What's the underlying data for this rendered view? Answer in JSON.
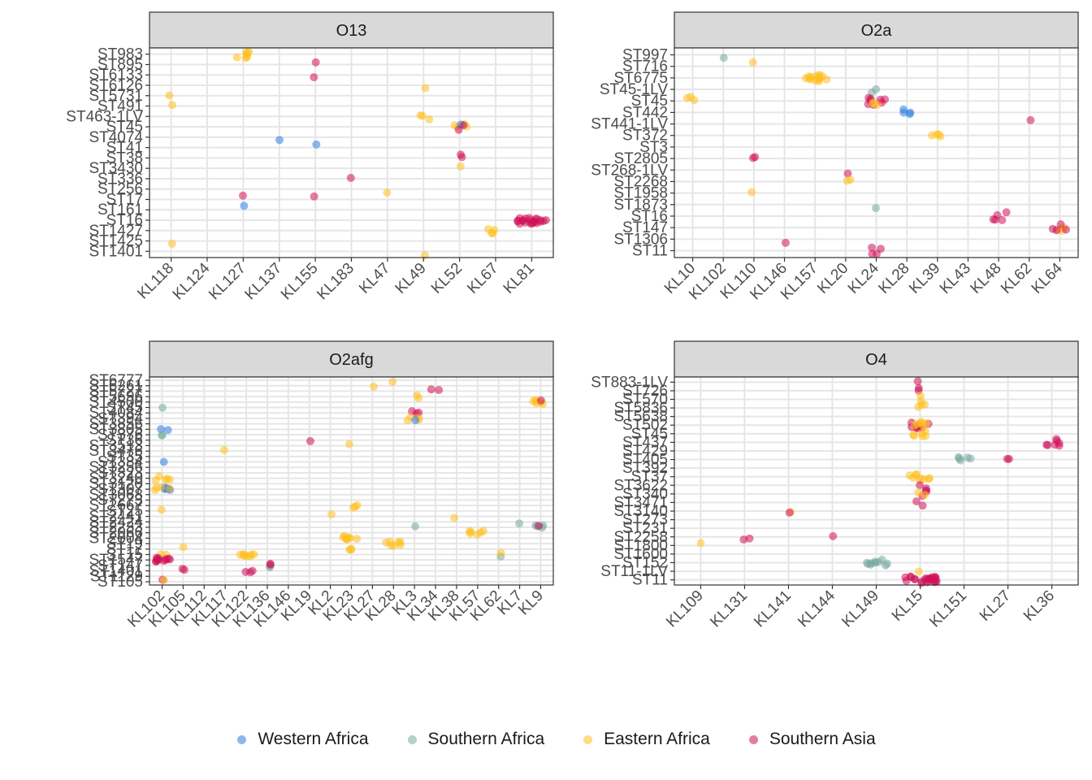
{
  "colors": {
    "Western Africa": "#2f7de1",
    "Southern Africa": "#77a9a0",
    "Eastern Africa": "#ffbf1f",
    "Southern Asia": "#d0105a"
  },
  "legend": {
    "items": [
      {
        "label": "Western Africa",
        "color": "#2f7de1"
      },
      {
        "label": "Southern Africa",
        "color": "#77a9a0"
      },
      {
        "label": "Eastern Africa",
        "color": "#ffbf1f"
      },
      {
        "label": "Southern Asia",
        "color": "#d0105a"
      }
    ]
  },
  "chart_data": [
    {
      "type": "scatter",
      "title": "O13",
      "x_categories": [
        "KL118",
        "KL124",
        "KL127",
        "KL137",
        "KL155",
        "KL183",
        "KL47",
        "KL49",
        "KL52",
        "KL67",
        "KL81"
      ],
      "y_categories": [
        "ST1401",
        "ST1425",
        "ST1427",
        "ST16",
        "ST161",
        "ST17",
        "ST256",
        "ST336",
        "ST3430",
        "ST38",
        "ST41",
        "ST4074",
        "ST45",
        "ST463-1LV",
        "ST491",
        "ST5731",
        "ST6126",
        "ST6133",
        "ST895",
        "ST983"
      ],
      "points": [
        {
          "x": "KL127",
          "y": "ST983",
          "region": "Eastern Africa",
          "n": 7
        },
        {
          "x": "KL155",
          "y": "ST895",
          "region": "Southern Asia",
          "n": 1
        },
        {
          "x": "KL155",
          "y": "ST6133",
          "region": "Southern Asia",
          "n": 1
        },
        {
          "x": "KL49",
          "y": "ST6126",
          "region": "Eastern Africa",
          "n": 1
        },
        {
          "x": "KL118",
          "y": "ST5731",
          "region": "Eastern Africa",
          "n": 1
        },
        {
          "x": "KL118",
          "y": "ST491",
          "region": "Eastern Africa",
          "n": 1
        },
        {
          "x": "KL49",
          "y": "ST463-1LV",
          "region": "Eastern Africa",
          "n": 3
        },
        {
          "x": "KL52",
          "y": "ST45",
          "region": "Eastern Africa",
          "n": 4
        },
        {
          "x": "KL52",
          "y": "ST45",
          "region": "Western Africa",
          "n": 1
        },
        {
          "x": "KL52",
          "y": "ST45",
          "region": "Southern Asia",
          "n": 2
        },
        {
          "x": "KL137",
          "y": "ST4074",
          "region": "Western Africa",
          "n": 1
        },
        {
          "x": "KL155",
          "y": "ST41",
          "region": "Western Africa",
          "n": 1
        },
        {
          "x": "KL52",
          "y": "ST38",
          "region": "Southern Asia",
          "n": 2
        },
        {
          "x": "KL52",
          "y": "ST3430",
          "region": "Eastern Africa",
          "n": 1
        },
        {
          "x": "KL183",
          "y": "ST336",
          "region": "Southern Asia",
          "n": 1
        },
        {
          "x": "KL47",
          "y": "ST256",
          "region": "Eastern Africa",
          "n": 1
        },
        {
          "x": "KL127",
          "y": "ST17",
          "region": "Southern Asia",
          "n": 1
        },
        {
          "x": "KL155",
          "y": "ST17",
          "region": "Southern Asia",
          "n": 1
        },
        {
          "x": "KL127",
          "y": "ST161",
          "region": "Western Africa",
          "n": 1
        },
        {
          "x": "KL81",
          "y": "ST16",
          "region": "Southern Asia",
          "n": 22
        },
        {
          "x": "KL67",
          "y": "ST1427",
          "region": "Eastern Africa",
          "n": 4
        },
        {
          "x": "KL118",
          "y": "ST1425",
          "region": "Eastern Africa",
          "n": 1
        },
        {
          "x": "KL49",
          "y": "ST1401",
          "region": "Eastern Africa",
          "n": 1
        }
      ]
    },
    {
      "type": "scatter",
      "title": "O2a",
      "x_categories": [
        "KL10",
        "KL102",
        "KL110",
        "KL146",
        "KL157",
        "KL20",
        "KL24",
        "KL28",
        "KL39",
        "KL43",
        "KL48",
        "KL62",
        "KL64"
      ],
      "y_categories": [
        "ST11",
        "ST1306",
        "ST147",
        "ST16",
        "ST1873",
        "ST1958",
        "ST2268",
        "ST268-1LV",
        "ST2805",
        "ST3",
        "ST372",
        "ST441-1LV",
        "ST442",
        "ST45",
        "ST45-1LV",
        "ST6775",
        "ST716",
        "ST997"
      ],
      "points": [
        {
          "x": "KL102",
          "y": "ST997",
          "region": "Southern Africa",
          "n": 1
        },
        {
          "x": "KL110",
          "y": "ST716",
          "region": "Eastern Africa",
          "n": 1
        },
        {
          "x": "KL157",
          "y": "ST6775",
          "region": "Eastern Africa",
          "n": 14
        },
        {
          "x": "KL24",
          "y": "ST45-1LV",
          "region": "Southern Africa",
          "n": 2
        },
        {
          "x": "KL10",
          "y": "ST45",
          "region": "Eastern Africa",
          "n": 3
        },
        {
          "x": "KL24",
          "y": "ST45",
          "region": "Southern Asia",
          "n": 8
        },
        {
          "x": "KL24",
          "y": "ST45",
          "region": "Eastern Africa",
          "n": 3
        },
        {
          "x": "KL28",
          "y": "ST442",
          "region": "Western Africa",
          "n": 4
        },
        {
          "x": "KL62",
          "y": "ST441-1LV",
          "region": "Southern Asia",
          "n": 1
        },
        {
          "x": "KL39",
          "y": "ST372",
          "region": "Eastern Africa",
          "n": 4
        },
        {
          "x": "KL110",
          "y": "ST2805",
          "region": "Southern Asia",
          "n": 2
        },
        {
          "x": "KL20",
          "y": "ST268-1LV",
          "region": "Southern Asia",
          "n": 1
        },
        {
          "x": "KL20",
          "y": "ST2268",
          "region": "Eastern Africa",
          "n": 2
        },
        {
          "x": "KL110",
          "y": "ST1958",
          "region": "Eastern Africa",
          "n": 1
        },
        {
          "x": "KL24",
          "y": "ST1873",
          "region": "Southern Africa",
          "n": 1
        },
        {
          "x": "KL48",
          "y": "ST16",
          "region": "Southern Asia",
          "n": 5
        },
        {
          "x": "KL64",
          "y": "ST147",
          "region": "Eastern Africa",
          "n": 4
        },
        {
          "x": "KL64",
          "y": "ST147",
          "region": "Southern Asia",
          "n": 4
        },
        {
          "x": "KL146",
          "y": "ST1306",
          "region": "Southern Asia",
          "n": 1
        },
        {
          "x": "KL24",
          "y": "ST11",
          "region": "Southern Asia",
          "n": 4
        }
      ]
    },
    {
      "type": "scatter",
      "title": "O2afg",
      "x_categories": [
        "KL102",
        "KL105",
        "KL112",
        "KL117",
        "KL122",
        "KL136",
        "KL146",
        "KL19",
        "KL2",
        "KL23",
        "KL27",
        "KL28",
        "KL3",
        "KL34",
        "KL38",
        "KL57",
        "KL62",
        "KL7",
        "KL9"
      ],
      "y_categories": [
        "ST105",
        "ST1129",
        "ST1401",
        "ST147",
        "ST1547",
        "ST15",
        "ST17",
        "ST19",
        "ST2004",
        "ST2066",
        "ST2233",
        "ST2424",
        "ST2441",
        "ST25",
        "ST2667",
        "ST273",
        "ST3068",
        "ST307",
        "ST3120",
        "ST3240",
        "ST323",
        "ST3256",
        "ST334",
        "ST35",
        "ST3476",
        "ST3513",
        "ST36",
        "ST376",
        "ST3805",
        "ST3856",
        "ST394",
        "ST4084",
        "ST45",
        "ST4500",
        "ST5696",
        "ST5727",
        "ST6261",
        "ST6777"
      ],
      "points": [
        {
          "x": "KL28",
          "y": "ST6777",
          "region": "Eastern Africa",
          "n": 1
        },
        {
          "x": "KL27",
          "y": "ST6261",
          "region": "Eastern Africa",
          "n": 1
        },
        {
          "x": "KL3",
          "y": "ST5696",
          "region": "Eastern Africa",
          "n": 2
        },
        {
          "x": "KL34",
          "y": "ST5727",
          "region": "Southern Asia",
          "n": 2
        },
        {
          "x": "KL9",
          "y": "ST4500",
          "region": "Eastern Africa",
          "n": 7
        },
        {
          "x": "KL9",
          "y": "ST4500",
          "region": "Southern Asia",
          "n": 1
        },
        {
          "x": "KL3",
          "y": "ST4084",
          "region": "Southern Asia",
          "n": 3
        },
        {
          "x": "KL102",
          "y": "ST45",
          "region": "Southern Africa",
          "n": 1
        },
        {
          "x": "KL3",
          "y": "ST394",
          "region": "Eastern Africa",
          "n": 4
        },
        {
          "x": "KL3",
          "y": "ST394",
          "region": "Western Africa",
          "n": 1
        },
        {
          "x": "KL102",
          "y": "ST3805",
          "region": "Western Africa",
          "n": 2
        },
        {
          "x": "KL102",
          "y": "ST376",
          "region": "Southern Africa",
          "n": 2
        },
        {
          "x": "KL19",
          "y": "ST36",
          "region": "Southern Asia",
          "n": 1
        },
        {
          "x": "KL117",
          "y": "ST3476",
          "region": "Eastern Africa",
          "n": 1
        },
        {
          "x": "KL23",
          "y": "ST3513",
          "region": "Eastern Africa",
          "n": 1
        },
        {
          "x": "KL102",
          "y": "ST334",
          "region": "Western Africa",
          "n": 1
        },
        {
          "x": "KL102",
          "y": "ST3240",
          "region": "Eastern Africa",
          "n": 5
        },
        {
          "x": "KL102",
          "y": "ST307",
          "region": "Western Africa",
          "n": 5
        },
        {
          "x": "KL102",
          "y": "ST307",
          "region": "Eastern Africa",
          "n": 4
        },
        {
          "x": "KL23",
          "y": "ST2667",
          "region": "Eastern Africa",
          "n": 3
        },
        {
          "x": "KL102",
          "y": "ST25",
          "region": "Eastern Africa",
          "n": 1
        },
        {
          "x": "KL2",
          "y": "ST2441",
          "region": "Eastern Africa",
          "n": 1
        },
        {
          "x": "KL38",
          "y": "ST2441",
          "region": "Eastern Africa",
          "n": 1
        },
        {
          "x": "KL7",
          "y": "ST2424",
          "region": "Southern Africa",
          "n": 1
        },
        {
          "x": "KL3",
          "y": "ST2233",
          "region": "Southern Africa",
          "n": 1
        },
        {
          "x": "KL9",
          "y": "ST2233",
          "region": "Southern Africa",
          "n": 4
        },
        {
          "x": "KL9",
          "y": "ST2233",
          "region": "Southern Asia",
          "n": 1
        },
        {
          "x": "KL57",
          "y": "ST2066",
          "region": "Eastern Africa",
          "n": 6
        },
        {
          "x": "KL23",
          "y": "ST2004",
          "region": "Eastern Africa",
          "n": 8
        },
        {
          "x": "KL28",
          "y": "ST19",
          "region": "Eastern Africa",
          "n": 7
        },
        {
          "x": "KL23",
          "y": "ST17",
          "region": "Eastern Africa",
          "n": 3
        },
        {
          "x": "KL105",
          "y": "ST17",
          "region": "Eastern Africa",
          "n": 1
        },
        {
          "x": "KL122",
          "y": "ST15",
          "region": "Eastern Africa",
          "n": 8
        },
        {
          "x": "KL102",
          "y": "ST15",
          "region": "Eastern Africa",
          "n": 2
        },
        {
          "x": "KL62",
          "y": "ST15",
          "region": "Southern Africa",
          "n": 1
        },
        {
          "x": "KL62",
          "y": "ST15",
          "region": "Eastern Africa",
          "n": 1
        },
        {
          "x": "KL102",
          "y": "ST1547",
          "region": "Southern Asia",
          "n": 12
        },
        {
          "x": "KL136",
          "y": "ST147",
          "region": "Southern Africa",
          "n": 2
        },
        {
          "x": "KL136",
          "y": "ST147",
          "region": "Southern Asia",
          "n": 2
        },
        {
          "x": "KL105",
          "y": "ST1401",
          "region": "Southern Asia",
          "n": 2
        },
        {
          "x": "KL122",
          "y": "ST1401",
          "region": "Southern Asia",
          "n": 3
        },
        {
          "x": "KL102",
          "y": "ST105",
          "region": "Southern Asia",
          "n": 1
        },
        {
          "x": "KL102",
          "y": "ST105",
          "region": "Eastern Africa",
          "n": 1
        }
      ]
    },
    {
      "type": "scatter",
      "title": "O4",
      "x_categories": [
        "KL109",
        "KL131",
        "KL141",
        "KL144",
        "KL149",
        "KL15",
        "KL151",
        "KL27",
        "KL36"
      ],
      "y_categories": [
        "ST11",
        "ST11-1LV",
        "ST152",
        "ST1600",
        "ST1800",
        "ST2258",
        "ST231",
        "ST273",
        "ST3140",
        "ST3471",
        "ST340",
        "ST3622",
        "ST37",
        "ST392",
        "ST405",
        "ST429",
        "ST437",
        "ST45",
        "ST502",
        "ST5638",
        "ST5836",
        "ST570",
        "ST726",
        "ST883-1LV"
      ],
      "points": [
        {
          "x": "KL15",
          "y": "ST883-1LV",
          "region": "Southern Asia",
          "n": 1
        },
        {
          "x": "KL15",
          "y": "ST726",
          "region": "Southern Asia",
          "n": 2
        },
        {
          "x": "KL15",
          "y": "ST570",
          "region": "Eastern Africa",
          "n": 2
        },
        {
          "x": "KL15",
          "y": "ST5836",
          "region": "Eastern Africa",
          "n": 3
        },
        {
          "x": "KL15",
          "y": "ST502",
          "region": "Southern Asia",
          "n": 8
        },
        {
          "x": "KL15",
          "y": "ST502",
          "region": "Eastern Africa",
          "n": 6
        },
        {
          "x": "KL15",
          "y": "ST45",
          "region": "Eastern Africa",
          "n": 6
        },
        {
          "x": "KL36",
          "y": "ST437",
          "region": "Southern Asia",
          "n": 7
        },
        {
          "x": "KL151",
          "y": "ST405",
          "region": "Southern Africa",
          "n": 5
        },
        {
          "x": "KL27",
          "y": "ST405",
          "region": "Southern Asia",
          "n": 2
        },
        {
          "x": "KL15",
          "y": "ST37",
          "region": "Eastern Africa",
          "n": 9
        },
        {
          "x": "KL15",
          "y": "ST3622",
          "region": "Southern Asia",
          "n": 2
        },
        {
          "x": "KL15",
          "y": "ST340",
          "region": "Southern Asia",
          "n": 3
        },
        {
          "x": "KL15",
          "y": "ST340",
          "region": "Eastern Africa",
          "n": 2
        },
        {
          "x": "KL141",
          "y": "ST3140",
          "region": "Eastern Africa",
          "n": 1
        },
        {
          "x": "KL141",
          "y": "ST3140",
          "region": "Southern Asia",
          "n": 1
        },
        {
          "x": "KL15",
          "y": "ST3471",
          "region": "Southern Asia",
          "n": 2
        },
        {
          "x": "KL144",
          "y": "ST2258",
          "region": "Southern Asia",
          "n": 1
        },
        {
          "x": "KL131",
          "y": "ST2258",
          "region": "Southern Asia",
          "n": 2
        },
        {
          "x": "KL109",
          "y": "ST1800",
          "region": "Eastern Africa",
          "n": 1
        },
        {
          "x": "KL149",
          "y": "ST152",
          "region": "Southern Africa",
          "n": 10
        },
        {
          "x": "KL15",
          "y": "ST11-1LV",
          "region": "Eastern Africa",
          "n": 1
        },
        {
          "x": "KL15",
          "y": "ST11",
          "region": "Southern Asia",
          "n": 25
        }
      ]
    }
  ]
}
